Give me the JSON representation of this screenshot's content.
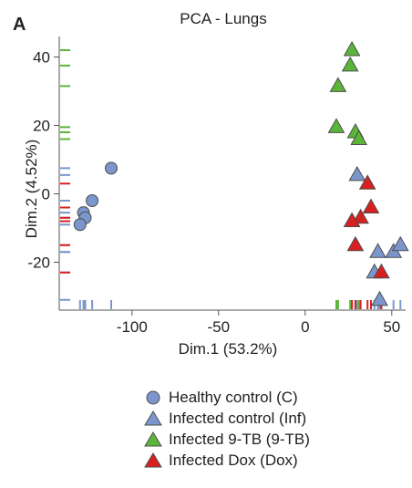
{
  "panel_label": "A",
  "chart_data": {
    "type": "scatter",
    "title": "PCA - Lungs",
    "xlabel": "Dim.1 (53.2%)",
    "ylabel": "Dim.2 (4.52%)",
    "xlim": [
      -142,
      58
    ],
    "ylim": [
      -34,
      46
    ],
    "xticks": [
      -100,
      -50,
      0,
      50
    ],
    "yticks": [
      -20,
      0,
      20,
      40
    ],
    "xtick_labels": [
      "-100",
      "-50",
      "0",
      "50"
    ],
    "ytick_labels": [
      "-20",
      "0",
      "20",
      "40"
    ],
    "grid": false,
    "legend_position": "bottom",
    "rug_marks": true,
    "series": [
      {
        "name": "Healthy control (C)",
        "marker": "circle",
        "color": "#7b96cc",
        "points": [
          [
            -112,
            7.5
          ],
          [
            -123,
            -2
          ],
          [
            -128,
            -5.5
          ],
          [
            -127,
            -7
          ],
          [
            -130,
            -9
          ]
        ]
      },
      {
        "name": "Infected control (Inf)",
        "marker": "triangle",
        "color": "#7b96cc",
        "points": [
          [
            30,
            5.5
          ],
          [
            42,
            -17
          ],
          [
            51,
            -17
          ],
          [
            55,
            -15
          ],
          [
            40,
            -23
          ],
          [
            43,
            -31
          ]
        ]
      },
      {
        "name": "Infected 9-TB (9-TB)",
        "marker": "triangle",
        "color": "#5bb539",
        "points": [
          [
            27,
            42
          ],
          [
            26,
            37.5
          ],
          [
            19,
            31.5
          ],
          [
            18,
            19.5
          ],
          [
            29,
            18
          ],
          [
            31,
            16
          ]
        ]
      },
      {
        "name": "Infected Dox (Dox)",
        "marker": "triangle",
        "color": "#d82020",
        "points": [
          [
            36,
            3
          ],
          [
            38,
            -4
          ],
          [
            32,
            -7
          ],
          [
            27,
            -8
          ],
          [
            29,
            -15
          ],
          [
            44,
            -23
          ]
        ]
      }
    ]
  }
}
